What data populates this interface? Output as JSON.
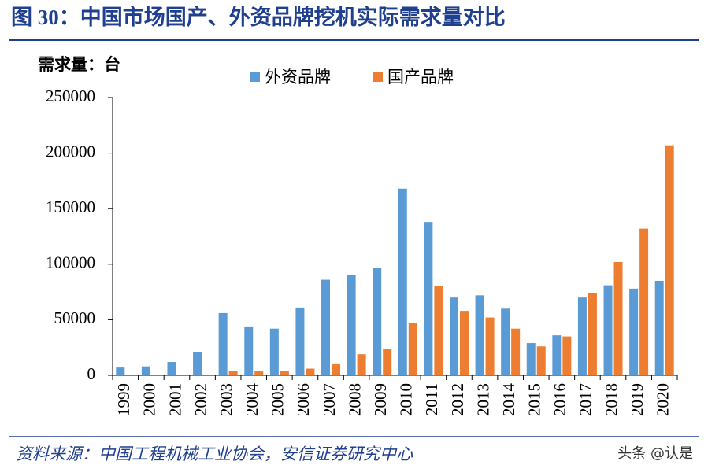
{
  "chart_data": {
    "type": "bar",
    "title": "图 30：中国市场国产、外资品牌挖机实际需求量对比",
    "y_label": "需求量：台",
    "categories": [
      "1999",
      "2000",
      "2001",
      "2002",
      "2003",
      "2004",
      "2005",
      "2006",
      "2007",
      "2008",
      "2009",
      "2010",
      "2011",
      "2012",
      "2013",
      "2014",
      "2015",
      "2016",
      "2017",
      "2018",
      "2019",
      "2020"
    ],
    "series": [
      {
        "name": "外资品牌",
        "color": "#5b9bd5",
        "values": [
          7000,
          8000,
          12000,
          21000,
          56000,
          44000,
          42000,
          61000,
          86000,
          90000,
          97000,
          168000,
          138000,
          70000,
          72000,
          60000,
          29000,
          36000,
          70000,
          81000,
          78000,
          85000
        ]
      },
      {
        "name": "国产品牌",
        "color": "#ed7d31",
        "values": [
          0,
          0,
          0,
          0,
          4000,
          4000,
          4000,
          6000,
          10000,
          19000,
          24000,
          47000,
          80000,
          58000,
          52000,
          42000,
          26000,
          35000,
          74000,
          102000,
          132000,
          207000
        ]
      }
    ],
    "ylim": [
      0,
      250000
    ],
    "yticks": [
      0,
      50000,
      100000,
      150000,
      200000,
      250000
    ],
    "legend": "top",
    "source": "资料来源：中国工程机械工业协会，安信证券研究中心",
    "watermark": "头条 @认是"
  }
}
